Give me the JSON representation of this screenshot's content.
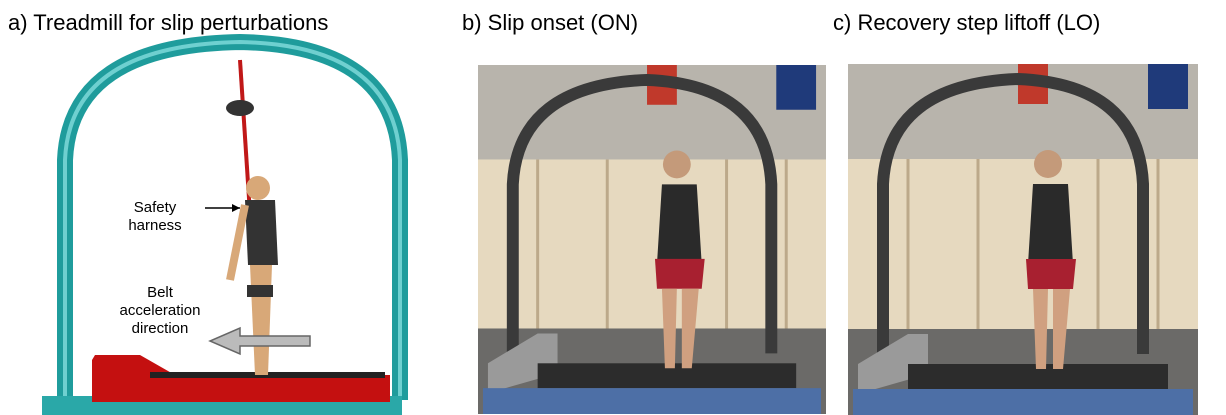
{
  "panels": [
    {
      "title": "a) Treadmill for slip perturbations",
      "annotations": [
        {
          "lines": [
            "Safety",
            "harness"
          ]
        },
        {
          "lines": [
            "Belt",
            "acceleration",
            "direction"
          ]
        }
      ]
    },
    {
      "title": "b) Slip onset (ON)"
    },
    {
      "title": "c) Recovery step liftoff (LO)"
    }
  ]
}
